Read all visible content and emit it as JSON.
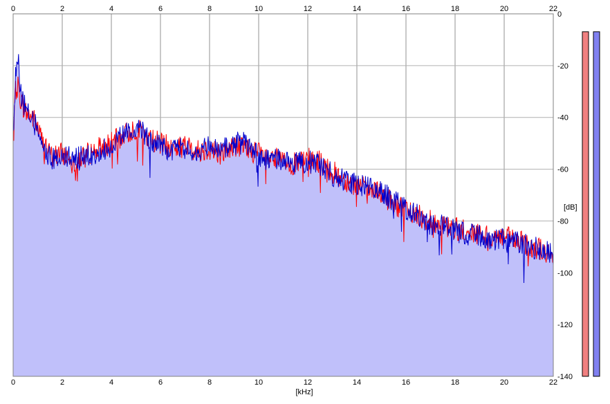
{
  "chart_data": {
    "type": "line",
    "title": "",
    "xlabel": "[kHz]",
    "ylabel": "[dB]",
    "xlim": [
      0,
      22
    ],
    "ylim": [
      -140,
      0
    ],
    "x_ticks": [
      0,
      2,
      4,
      6,
      8,
      10,
      12,
      14,
      16,
      18,
      20,
      22
    ],
    "y_ticks": [
      0,
      -20,
      -40,
      -60,
      -80,
      -100,
      -120,
      -140
    ],
    "y_tick_labels": [
      "0",
      "-20",
      "-40",
      "-60",
      "-80",
      "-100",
      "-120",
      "-140"
    ],
    "grid": true,
    "fill_color": "#c0c0fa",
    "series": [
      {
        "color": "#ff0000",
        "x": [
          0,
          0.1,
          0.2,
          0.3,
          0.5,
          0.8,
          1.0,
          1.3,
          1.6,
          2.0,
          2.5,
          3.0,
          3.5,
          4.0,
          4.5,
          5.0,
          5.5,
          6.0,
          6.5,
          7.0,
          7.5,
          8.0,
          8.5,
          9.0,
          9.5,
          10.0,
          10.5,
          11.0,
          11.5,
          12.0,
          12.5,
          13.0,
          13.5,
          14.0,
          14.5,
          15.0,
          15.5,
          16.0,
          16.5,
          17.0,
          17.5,
          18.0,
          18.5,
          19.0,
          19.5,
          20.0,
          20.5,
          21.0,
          21.5,
          22.0
        ],
        "y": [
          -45,
          -30,
          -28,
          -33,
          -38,
          -40,
          -44,
          -52,
          -55,
          -54,
          -57,
          -54,
          -52,
          -50,
          -47,
          -44,
          -48,
          -50,
          -52,
          -51,
          -53,
          -52,
          -54,
          -51,
          -52,
          -54,
          -56,
          -57,
          -58,
          -56,
          -57,
          -61,
          -64,
          -66,
          -68,
          -70,
          -73,
          -76,
          -78,
          -80,
          -82,
          -83,
          -84,
          -85,
          -86,
          -86,
          -88,
          -89,
          -91,
          -95
        ]
      },
      {
        "color": "#0000cc",
        "x": [
          0,
          0.1,
          0.2,
          0.3,
          0.5,
          0.8,
          1.0,
          1.3,
          1.6,
          2.0,
          2.5,
          3.0,
          3.5,
          4.0,
          4.5,
          5.0,
          5.5,
          6.0,
          6.5,
          7.0,
          7.5,
          8.0,
          8.5,
          9.0,
          9.5,
          10.0,
          10.5,
          11.0,
          11.5,
          12.0,
          12.5,
          13.0,
          13.5,
          14.0,
          14.5,
          15.0,
          15.5,
          16.0,
          16.5,
          17.0,
          17.5,
          18.0,
          18.5,
          19.0,
          19.5,
          20.0,
          20.5,
          21.0,
          21.5,
          22.0
        ],
        "y": [
          -47,
          -24,
          -17,
          -30,
          -37,
          -41,
          -45,
          -53,
          -56,
          -55,
          -56,
          -55,
          -53,
          -51,
          -47,
          -43,
          -48,
          -51,
          -53,
          -52,
          -54,
          -51,
          -53,
          -50,
          -50,
          -55,
          -57,
          -56,
          -58,
          -57,
          -58,
          -62,
          -64,
          -66,
          -67,
          -69,
          -72,
          -75,
          -78,
          -81,
          -82,
          -84,
          -85,
          -86,
          -87,
          -87,
          -88,
          -90,
          -91,
          -93
        ]
      }
    ]
  },
  "side_bars": [
    {
      "color": "#f08080",
      "level": -0.5
    },
    {
      "color": "#8080f0",
      "level": -0.5
    }
  ]
}
